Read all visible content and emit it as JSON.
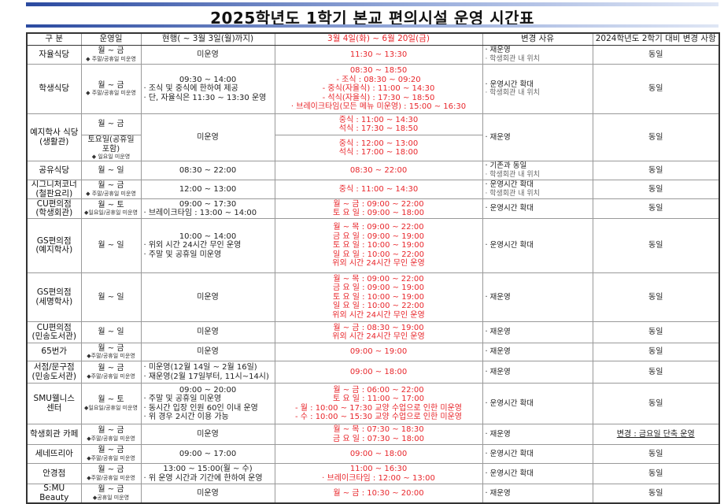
{
  "title": "2025학년도 1학기 본교 편의시설 운영 시간표",
  "colors": {
    "highlight": "#e8262b",
    "banner": "#2b4aa0"
  },
  "headers": [
    "구 분",
    "운영일",
    "현행( ~ 3월 3일(월)까지)",
    "3월 4일(화) ~ 6월 20일(금)",
    "변경 사유",
    "2024학년도 2학기 대비 변경 사항"
  ],
  "rows": [
    {
      "name": [
        "자율식당"
      ],
      "days": [
        "월 ~ 금",
        "◆ 주말/공휴일 미운영"
      ],
      "current": [
        "미운영"
      ],
      "new": [
        "11:30 ~ 13:30"
      ],
      "reason": [
        "· 재운영",
        "· 학생회관 내 위치"
      ],
      "change": "동일"
    },
    {
      "name": [
        "학생식당"
      ],
      "days": [
        "월 ~ 금",
        "◆ 주말/공휴일 미운영"
      ],
      "current": [
        "09:30 ~ 14:00",
        "· 조식 및 중식에 한하여 제공",
        "· 단, 자율식은 11:30 ~ 13:30 운영"
      ],
      "new": [
        "08:30 ~ 18:50",
        "- 조식 : 08:30 ~ 09:20",
        "- 중식(자율식) : 11:00 ~ 14:30",
        "- 석식(자율식) : 17:30 ~ 18:50",
        "· 브레이크타임(모든 메뉴 미운영) : 15:00 ~ 16:30"
      ],
      "reason": [
        "· 운영시간 확대",
        "· 학생회관 내 위치"
      ],
      "change": "동일"
    },
    {
      "name": [
        "예지학사 식당",
        "(생활관)"
      ],
      "split": [
        {
          "days": [
            "월 ~ 금"
          ],
          "new": [
            "중식 : 11:00 ~ 14:30",
            "석식 : 17:30 ~ 18:50"
          ]
        },
        {
          "days": [
            "토요일(공휴일 포함)",
            "◆ 일요일 미운영"
          ],
          "new": [
            "중식 : 12:00 ~ 13:00",
            "석식 : 17:00 ~ 18:00"
          ]
        }
      ],
      "current": [
        "미운영"
      ],
      "reason": [
        "· 재운영"
      ],
      "change": "동일"
    },
    {
      "name": [
        "공유식당"
      ],
      "days": [
        "월 ~ 일"
      ],
      "current": [
        "08:30 ~ 22:00"
      ],
      "new": [
        "08:30 ~ 22:00"
      ],
      "reason": [
        "· 기존과 동일",
        "· 학생회관 내 위치"
      ],
      "change": "동일"
    },
    {
      "name": [
        "시그니처코너",
        "(철판요리)"
      ],
      "days": [
        "월 ~ 금",
        "◆ 주말/공휴일 미운영"
      ],
      "current": [
        "12:00 ~ 13:00"
      ],
      "new": [
        "중식 : 11:00 ~ 14:30"
      ],
      "reason": [
        "· 운영시간 확대",
        "· 학생회관 내 위치"
      ],
      "change": "동일"
    },
    {
      "name": [
        "CU편의점",
        "(학생회관)"
      ],
      "days": [
        "월 ~ 토",
        "◆일요일/공휴일 미운영"
      ],
      "current": [
        "09:00 ~ 17:30",
        "· 브레이크타임 : 13:00 ~ 14:00"
      ],
      "new": [
        "월 ~ 금 : 09:00 ~ 22:00",
        "토 요 일 : 09:00 ~ 18:00"
      ],
      "reason": [
        "· 운영시간 확대"
      ],
      "change": "동일"
    },
    {
      "name": [
        "GS편의점",
        "(예지학사)"
      ],
      "days": [
        "월 ~ 일"
      ],
      "current": [
        "10:00 ~ 14:00",
        "· 위외 시간 24시간 무인 운영",
        "· 주말 및 공휴일 미운영"
      ],
      "new": [
        "월 ~ 목 : 09:00 ~ 22:00",
        "금 요 일 : 09:00 ~ 19:00",
        "토 요 일 : 10:00 ~ 19:00",
        "일 요 일 : 10:00 ~ 22:00",
        "위외 시간 24시간 무인 운영"
      ],
      "reason": [
        "· 운영시간 확대"
      ],
      "change": "동일"
    },
    {
      "name": [
        "GS편의점",
        "(세명학사)"
      ],
      "days": [
        "월 ~ 일"
      ],
      "current": [
        "미운영"
      ],
      "new": [
        "월 ~ 목 : 09:00 ~ 22:00",
        "금 요 일 : 09:00 ~ 19:00",
        "토 요 일 : 10:00 ~ 19:00",
        "일 요 일 : 10:00 ~ 22:00",
        "위외 시간 24시간 무인 운영"
      ],
      "reason": [
        "· 재운영"
      ],
      "change": "동일"
    },
    {
      "name": [
        "CU편의점",
        "(민송도서관)"
      ],
      "days": [
        "월 ~ 일"
      ],
      "current": [
        "미운영"
      ],
      "new": [
        "월 ~ 금 : 08:30 ~ 19:00",
        "위외 시간 24시간 무인 운영"
      ],
      "reason": [
        "· 재운영"
      ],
      "change": "동일"
    },
    {
      "name": [
        "65번가"
      ],
      "days": [
        "월 ~ 금",
        "◆주말/공휴일 미운영"
      ],
      "current": [
        "미운영"
      ],
      "new": [
        "09:00 ~ 19:00"
      ],
      "reason": [
        "· 재운영"
      ],
      "change": "동일"
    },
    {
      "name": [
        "서점/문구점",
        "(민송도서관)"
      ],
      "days": [
        "월 ~ 금",
        "◆주말/공휴일 미운영"
      ],
      "current": [
        "· 미운영(12월 14일 ~ 2월 16일)",
        "· 재운영(2월 17일부터, 11시~14시)"
      ],
      "new": [
        "09:00 ~ 18:00"
      ],
      "reason": [
        "· 재운영"
      ],
      "change": "동일"
    },
    {
      "name": [
        "SMU웰니스센터"
      ],
      "days": [
        "월 ~ 토",
        "◆일요일/공휴일 미운영"
      ],
      "current": [
        "09:00 ~ 20:00",
        "· 주말 및 공휴일 미운영",
        "· 동시간 입장 인원 60인 이내 운영",
        "· 위 경우 2시간 이용 가능"
      ],
      "new": [
        "월 ~ 금 : 06:00 ~ 22:00",
        "토 요 일 : 11:00 ~ 17:00",
        "- 월 : 10:00 ~ 17:30 교양 수업으로 인한 미운영",
        "- 수 : 10:00 ~ 15:30 교양 수업으로 인한 미운영"
      ],
      "reason": [
        "· 운영시간 확대"
      ],
      "change": "동일"
    },
    {
      "name": [
        "학생회관 카페"
      ],
      "days": [
        "월 ~ 금",
        "◆주말/공휴일 미운영"
      ],
      "current": [
        "미운영"
      ],
      "new": [
        "월 ~ 목 : 07:30 ~ 18:30",
        "금 요 일 : 07:30 ~ 18:00"
      ],
      "reason": [
        "· 재운영"
      ],
      "change": "변경 : 금요일 단축 운영",
      "change_underline": true
    },
    {
      "name": [
        "세네뜨리아"
      ],
      "days": [
        "월 ~ 금",
        "◆주말/공휴일 미운영"
      ],
      "current": [
        "09:00 ~ 17:00"
      ],
      "new": [
        "09:00 ~ 18:00"
      ],
      "reason": [
        "· 운영시간 확대"
      ],
      "change": "동일"
    },
    {
      "name": [
        "안경점"
      ],
      "days": [
        "월 ~ 금",
        "◆주말/공휴일 미운영"
      ],
      "current": [
        "13:00 ~ 15:00(월 ~ 수)",
        "· 위 운영 시간과 기간에 한하여 운영"
      ],
      "new": [
        "11:00 ~ 16:30",
        "· 브레이크타임 : 12:00 ~ 13:00"
      ],
      "reason": [
        "· 운영시간 확대"
      ],
      "change": "동일"
    },
    {
      "name": [
        "S:MU Beauty"
      ],
      "days": [
        "월 ~ 금",
        "◆공휴일 미운영"
      ],
      "current": [
        "미운영"
      ],
      "new": [
        "월 ~ 금 : 10:30 ~ 20:00"
      ],
      "reason": [
        "· 재운영"
      ],
      "change": "동일"
    }
  ]
}
